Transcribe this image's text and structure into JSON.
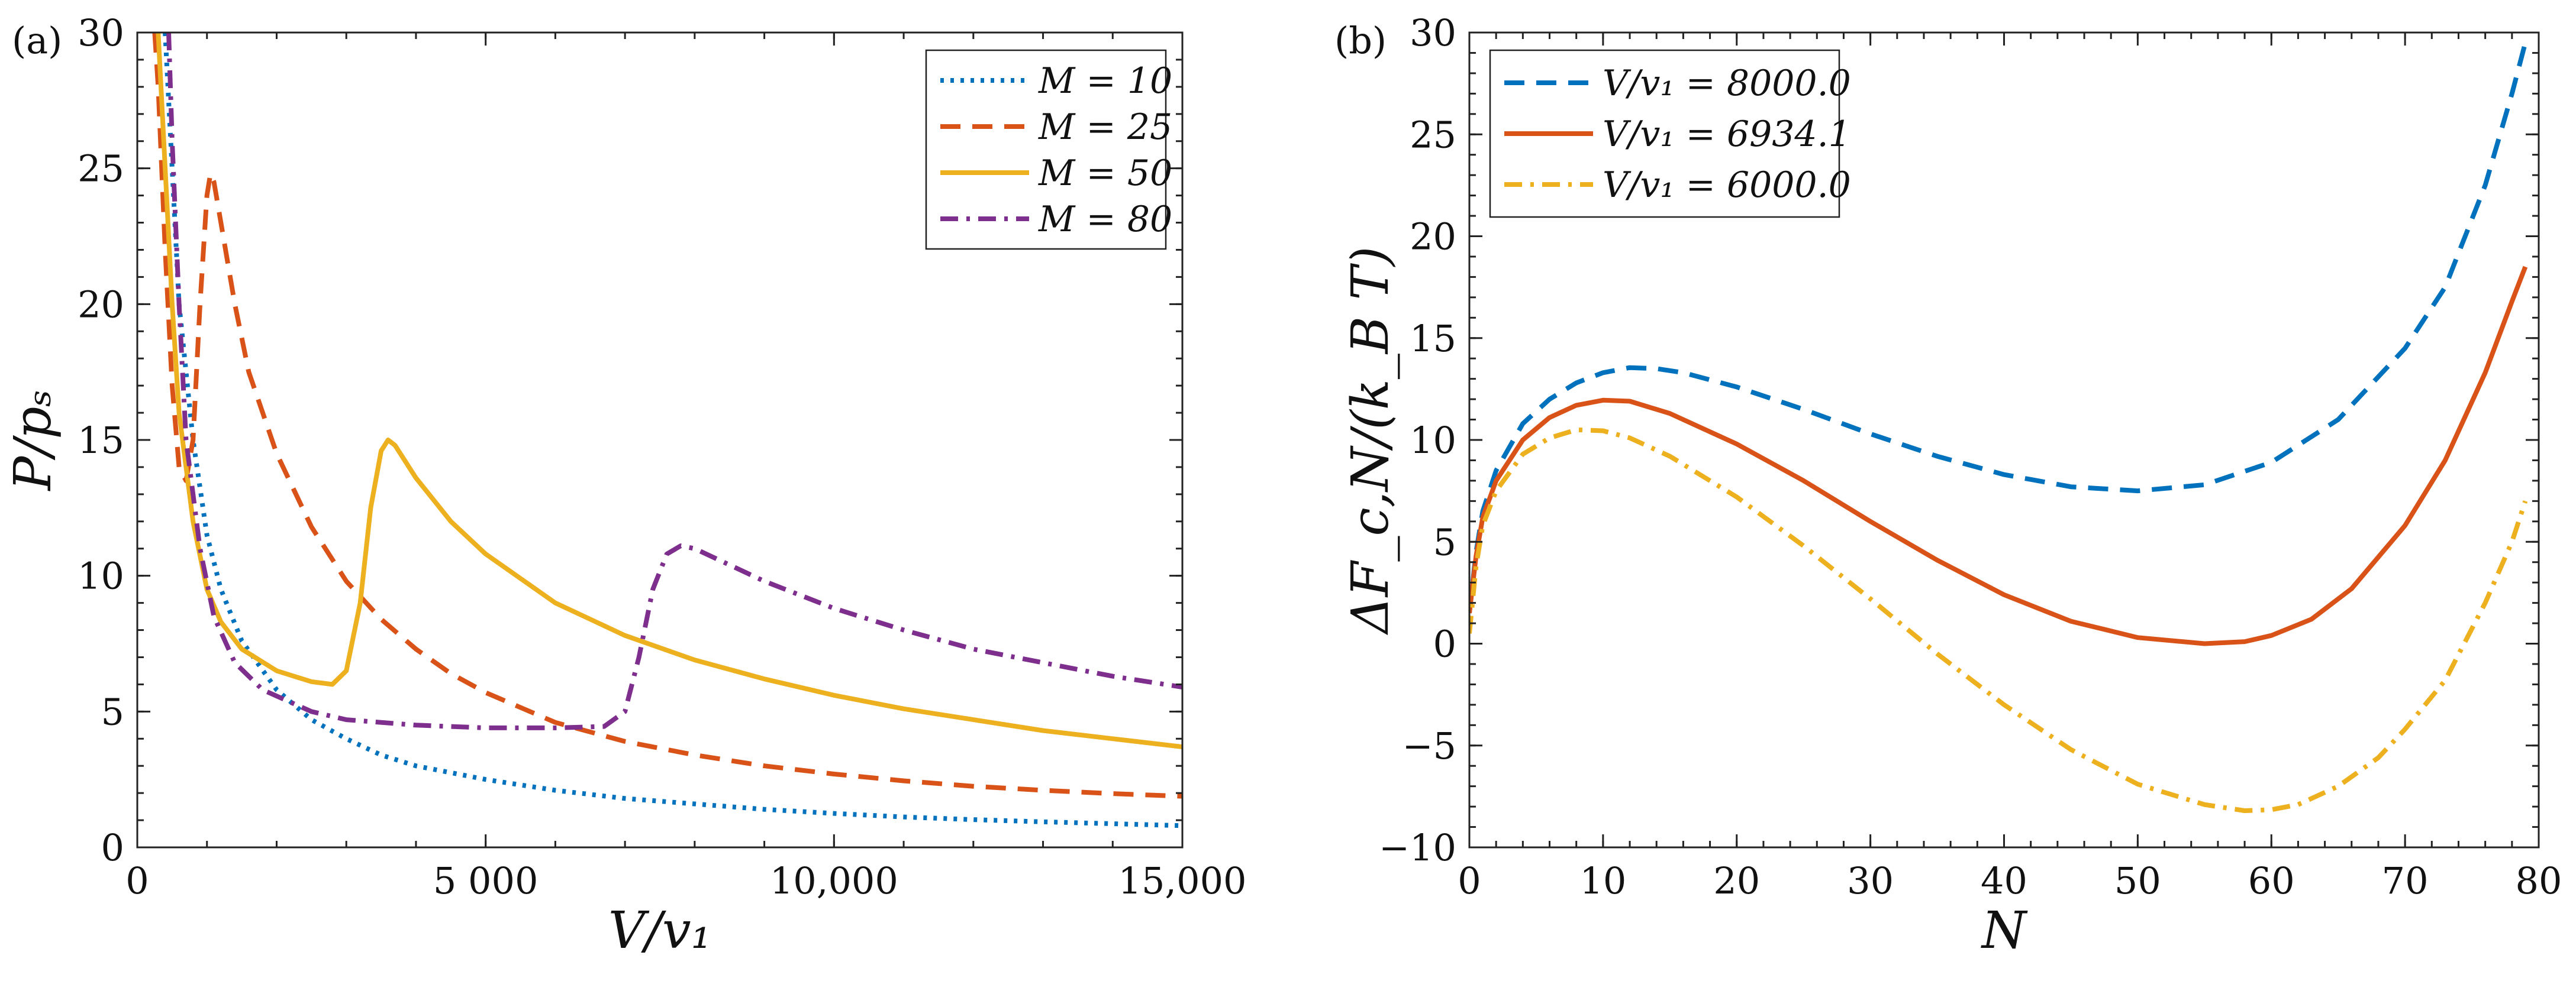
{
  "figure": {
    "panel_labels": [
      "(a)",
      "(b)"
    ]
  },
  "chart_data": [
    {
      "type": "line",
      "panel": "(a)",
      "xlabel": "V/v₁",
      "ylabel": "P/pₛ",
      "xlim": [
        0,
        15000
      ],
      "ylim": [
        0,
        30
      ],
      "xticks": [
        0,
        5000,
        10000,
        15000
      ],
      "xtick_labels": [
        "0",
        "5 000",
        "10,000",
        "15,000"
      ],
      "yticks": [
        0,
        5,
        10,
        15,
        20,
        25,
        30
      ],
      "ytick_labels": [
        "0",
        "5",
        "10",
        "15",
        "20",
        "25",
        "30"
      ],
      "grid": false,
      "legend_position": "top-right",
      "series": [
        {
          "name": "M = 10",
          "color": "#0072BD",
          "dash": "dotted",
          "points": [
            [
              400,
              30
            ],
            [
              500,
              25
            ],
            [
              600,
              20
            ],
            [
              800,
              15
            ],
            [
              1000,
              11.5
            ],
            [
              1200,
              9.5
            ],
            [
              1500,
              7.6
            ],
            [
              2000,
              5.8
            ],
            [
              2500,
              4.7
            ],
            [
              3000,
              4.0
            ],
            [
              3500,
              3.4
            ],
            [
              4000,
              3.0
            ],
            [
              5000,
              2.5
            ],
            [
              6000,
              2.1
            ],
            [
              7000,
              1.8
            ],
            [
              8000,
              1.6
            ],
            [
              9000,
              1.4
            ],
            [
              10000,
              1.25
            ],
            [
              11000,
              1.12
            ],
            [
              12000,
              1.02
            ],
            [
              13000,
              0.94
            ],
            [
              14000,
              0.87
            ],
            [
              15000,
              0.8
            ]
          ]
        },
        {
          "name": "M = 25",
          "color": "#D95319",
          "dash": "dashed",
          "points": [
            [
              250,
              30
            ],
            [
              300,
              28
            ],
            [
              400,
              22
            ],
            [
              500,
              17
            ],
            [
              600,
              14
            ],
            [
              700,
              13.5
            ],
            [
              800,
              15
            ],
            [
              900,
              20
            ],
            [
              1000,
              24
            ],
            [
              1050,
              24.8
            ],
            [
              1100,
              24.5
            ],
            [
              1200,
              23
            ],
            [
              1400,
              20
            ],
            [
              1600,
              17.5
            ],
            [
              2000,
              14.5
            ],
            [
              2500,
              11.8
            ],
            [
              3000,
              9.8
            ],
            [
              3500,
              8.4
            ],
            [
              4000,
              7.3
            ],
            [
              4500,
              6.4
            ],
            [
              5000,
              5.7
            ],
            [
              6000,
              4.6
            ],
            [
              7000,
              3.9
            ],
            [
              8000,
              3.4
            ],
            [
              9000,
              3.0
            ],
            [
              10000,
              2.7
            ],
            [
              11000,
              2.45
            ],
            [
              12000,
              2.25
            ],
            [
              13000,
              2.1
            ],
            [
              14000,
              1.98
            ],
            [
              15000,
              1.88
            ]
          ]
        },
        {
          "name": "M = 50",
          "color": "#EDB120",
          "dash": "solid",
          "points": [
            [
              300,
              30
            ],
            [
              400,
              25
            ],
            [
              500,
              20
            ],
            [
              600,
              16
            ],
            [
              800,
              12
            ],
            [
              1000,
              9.5
            ],
            [
              1200,
              8.3
            ],
            [
              1500,
              7.3
            ],
            [
              2000,
              6.5
            ],
            [
              2500,
              6.1
            ],
            [
              2800,
              6.0
            ],
            [
              3000,
              6.5
            ],
            [
              3200,
              9
            ],
            [
              3350,
              12.5
            ],
            [
              3500,
              14.6
            ],
            [
              3600,
              15.0
            ],
            [
              3700,
              14.8
            ],
            [
              4000,
              13.6
            ],
            [
              4500,
              12.0
            ],
            [
              5000,
              10.8
            ],
            [
              6000,
              9.0
            ],
            [
              7000,
              7.8
            ],
            [
              8000,
              6.9
            ],
            [
              9000,
              6.2
            ],
            [
              10000,
              5.6
            ],
            [
              11000,
              5.1
            ],
            [
              12000,
              4.7
            ],
            [
              13000,
              4.3
            ],
            [
              14000,
              4.0
            ],
            [
              15000,
              3.7
            ]
          ]
        },
        {
          "name": "M = 80",
          "color": "#7E2F8E",
          "dash": "dashdot",
          "points": [
            [
              450,
              30
            ],
            [
              500,
              26
            ],
            [
              600,
              20
            ],
            [
              700,
              15
            ],
            [
              900,
              11
            ],
            [
              1100,
              8.5
            ],
            [
              1400,
              6.8
            ],
            [
              1800,
              5.8
            ],
            [
              2500,
              5.0
            ],
            [
              3000,
              4.7
            ],
            [
              4000,
              4.5
            ],
            [
              5000,
              4.4
            ],
            [
              6000,
              4.4
            ],
            [
              6700,
              4.45
            ],
            [
              7000,
              5.0
            ],
            [
              7200,
              7.0
            ],
            [
              7400,
              9.5
            ],
            [
              7600,
              10.8
            ],
            [
              7800,
              11.1
            ],
            [
              8000,
              11.0
            ],
            [
              8500,
              10.4
            ],
            [
              9000,
              9.8
            ],
            [
              10000,
              8.8
            ],
            [
              11000,
              8.0
            ],
            [
              12000,
              7.3
            ],
            [
              13000,
              6.8
            ],
            [
              14000,
              6.3
            ],
            [
              15000,
              5.9
            ]
          ]
        }
      ]
    },
    {
      "type": "line",
      "panel": "(b)",
      "xlabel": "N",
      "ylabel": "ΔF_c,N/(k_B T)",
      "xlim": [
        0,
        80
      ],
      "ylim": [
        -10,
        30
      ],
      "xticks": [
        0,
        10,
        20,
        30,
        40,
        50,
        60,
        70,
        80
      ],
      "xtick_labels": [
        "0",
        "10",
        "20",
        "30",
        "40",
        "50",
        "60",
        "70",
        "80"
      ],
      "yticks": [
        -10,
        -5,
        0,
        5,
        10,
        15,
        20,
        25,
        30
      ],
      "ytick_labels": [
        "−10",
        "−5",
        "0",
        "5",
        "10",
        "15",
        "20",
        "25",
        "30"
      ],
      "grid": false,
      "legend_position": "top-left",
      "series": [
        {
          "name": "V/v₁ = 8000.0",
          "color": "#0072BD",
          "dash": "dashed",
          "points": [
            [
              0,
              1.5
            ],
            [
              0.5,
              4.5
            ],
            [
              1,
              6.5
            ],
            [
              2,
              8.5
            ],
            [
              4,
              10.8
            ],
            [
              6,
              12.0
            ],
            [
              8,
              12.8
            ],
            [
              10,
              13.3
            ],
            [
              12,
              13.55
            ],
            [
              14,
              13.5
            ],
            [
              16,
              13.3
            ],
            [
              20,
              12.6
            ],
            [
              25,
              11.5
            ],
            [
              30,
              10.3
            ],
            [
              35,
              9.2
            ],
            [
              40,
              8.3
            ],
            [
              45,
              7.7
            ],
            [
              50,
              7.5
            ],
            [
              55,
              7.8
            ],
            [
              60,
              8.9
            ],
            [
              65,
              11.0
            ],
            [
              70,
              14.5
            ],
            [
              73,
              17.5
            ],
            [
              76,
              22.5
            ],
            [
              78,
              27.0
            ],
            [
              79,
              29.5
            ]
          ]
        },
        {
          "name": "V/v₁ = 6934.1",
          "color": "#D95319",
          "dash": "solid",
          "points": [
            [
              0,
              1.5
            ],
            [
              0.5,
              4.3
            ],
            [
              1,
              6.2
            ],
            [
              2,
              8.0
            ],
            [
              4,
              10.0
            ],
            [
              6,
              11.1
            ],
            [
              8,
              11.7
            ],
            [
              10,
              11.95
            ],
            [
              12,
              11.9
            ],
            [
              15,
              11.3
            ],
            [
              20,
              9.8
            ],
            [
              25,
              8.0
            ],
            [
              30,
              6.0
            ],
            [
              35,
              4.1
            ],
            [
              40,
              2.4
            ],
            [
              45,
              1.1
            ],
            [
              50,
              0.3
            ],
            [
              55,
              0.0
            ],
            [
              58,
              0.1
            ],
            [
              60,
              0.4
            ],
            [
              63,
              1.2
            ],
            [
              66,
              2.7
            ],
            [
              70,
              5.8
            ],
            [
              73,
              9.0
            ],
            [
              76,
              13.3
            ],
            [
              78,
              16.8
            ],
            [
              79,
              18.5
            ]
          ]
        },
        {
          "name": "V/v₁ = 6000.0",
          "color": "#EDB120",
          "dash": "dashdot",
          "points": [
            [
              0,
              0.5
            ],
            [
              0.5,
              3.8
            ],
            [
              1,
              5.8
            ],
            [
              2,
              7.5
            ],
            [
              4,
              9.3
            ],
            [
              6,
              10.1
            ],
            [
              8,
              10.5
            ],
            [
              10,
              10.45
            ],
            [
              12,
              10.1
            ],
            [
              15,
              9.2
            ],
            [
              20,
              7.2
            ],
            [
              25,
              4.8
            ],
            [
              30,
              2.2
            ],
            [
              35,
              -0.5
            ],
            [
              40,
              -3.0
            ],
            [
              45,
              -5.2
            ],
            [
              50,
              -6.9
            ],
            [
              55,
              -7.9
            ],
            [
              58,
              -8.2
            ],
            [
              60,
              -8.15
            ],
            [
              62,
              -7.9
            ],
            [
              65,
              -7.0
            ],
            [
              68,
              -5.6
            ],
            [
              70,
              -4.2
            ],
            [
              73,
              -1.8
            ],
            [
              76,
              2.0
            ],
            [
              78,
              5.0
            ],
            [
              79,
              7.0
            ]
          ]
        }
      ]
    }
  ]
}
